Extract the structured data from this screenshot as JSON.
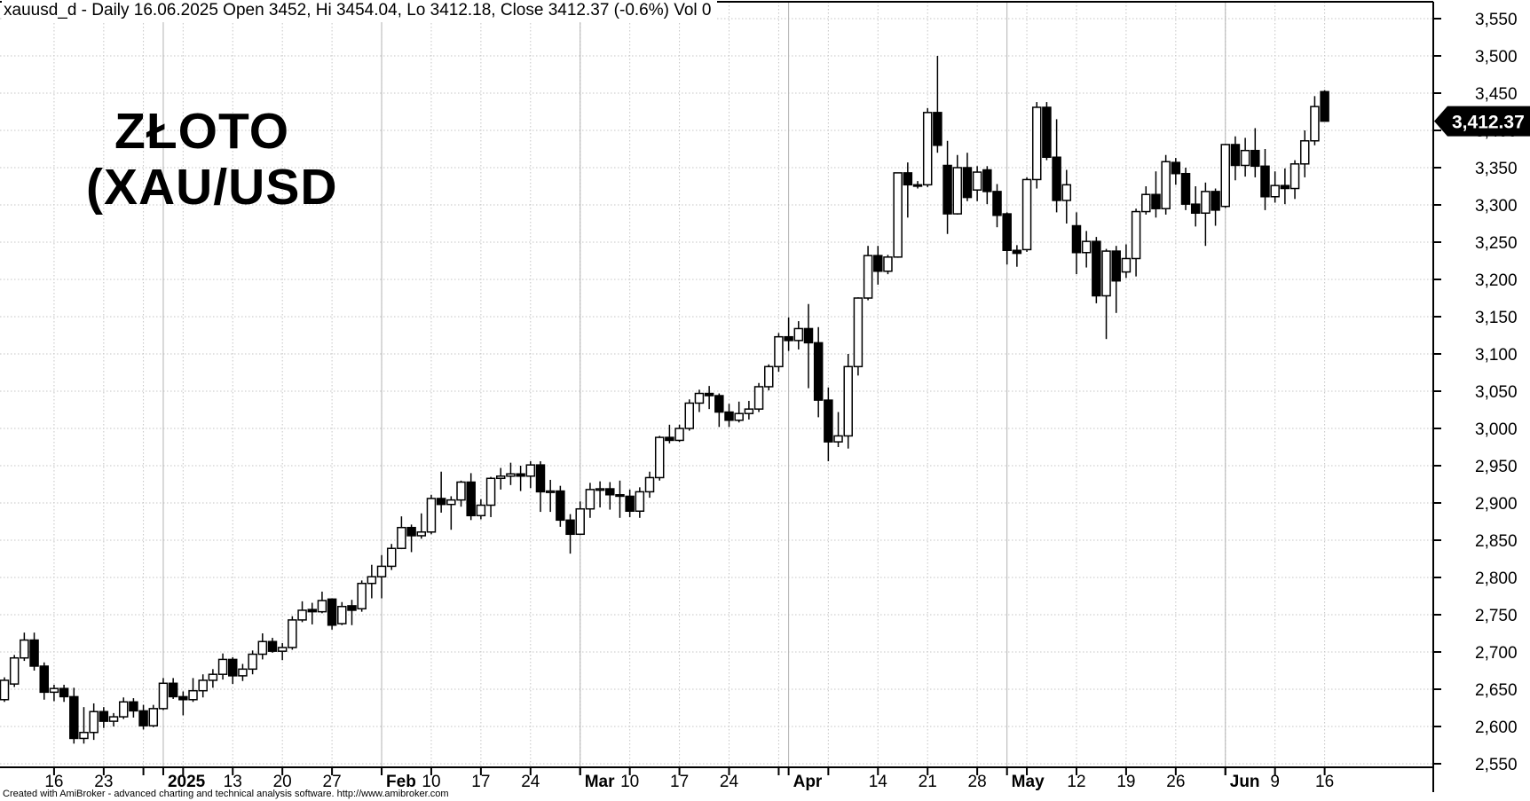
{
  "window": {
    "title": "xauusd_d - Daily 16.06.2025 Open 3452, Hi 3454.04, Lo 3412.18, Close 3412.37 (-0.6%) Vol 0"
  },
  "watermark": {
    "line1": "ZŁOTO",
    "line2": "(XAU/USD"
  },
  "price_tag": {
    "label": "3,412.37",
    "value": 3412.37
  },
  "footer": {
    "credit": "Created with AmiBroker - advanced charting and technical analysis software. http://www.amibroker.com"
  },
  "colors": {
    "background": "#ffffff",
    "candle_up_fill": "#ffffff",
    "candle_down_fill": "#000000",
    "outline": "#000000",
    "grid_dotted": "#c4c4c4",
    "grid_month": "#b2b2b2",
    "tag_bg": "#000000",
    "tag_fg": "#ffffff"
  },
  "y_axis": {
    "min": 2550,
    "max": 3550,
    "step": 50,
    "labels": [
      "2,550",
      "2,600",
      "2,650",
      "2,700",
      "2,750",
      "2,800",
      "2,850",
      "2,900",
      "2,950",
      "3,000",
      "3,050",
      "3,100",
      "3,150",
      "3,200",
      "3,250",
      "3,300",
      "3,350",
      "3,400",
      "3,450",
      "3,500",
      "3,550"
    ]
  },
  "x_axis": {
    "week_start_indices": [
      5,
      10,
      14,
      18,
      23,
      28,
      33,
      38,
      43,
      48,
      53,
      58,
      63,
      68,
      73,
      78,
      83,
      88,
      93,
      98,
      103,
      108,
      113,
      118,
      123,
      128,
      133
    ],
    "month_start_indices": [
      16,
      38,
      58,
      79,
      101,
      123
    ],
    "tick_labels": [
      {
        "i": 5,
        "t": "16",
        "bold": false
      },
      {
        "i": 10,
        "t": "23",
        "bold": false
      },
      {
        "i": 16,
        "t": "2025",
        "bold": true
      },
      {
        "i": 23,
        "t": "13",
        "bold": false
      },
      {
        "i": 28,
        "t": "20",
        "bold": false
      },
      {
        "i": 33,
        "t": "27",
        "bold": false
      },
      {
        "i": 38,
        "t": "Feb",
        "bold": true
      },
      {
        "i": 43,
        "t": "10",
        "bold": false
      },
      {
        "i": 48,
        "t": "17",
        "bold": false
      },
      {
        "i": 53,
        "t": "24",
        "bold": false
      },
      {
        "i": 58,
        "t": "Mar",
        "bold": true
      },
      {
        "i": 63,
        "t": "10",
        "bold": false
      },
      {
        "i": 68,
        "t": "17",
        "bold": false
      },
      {
        "i": 73,
        "t": "24",
        "bold": false
      },
      {
        "i": 79,
        "t": "Apr",
        "bold": true
      },
      {
        "i": 88,
        "t": "14",
        "bold": false
      },
      {
        "i": 93,
        "t": "21",
        "bold": false
      },
      {
        "i": 98,
        "t": "28",
        "bold": false
      },
      {
        "i": 101,
        "t": "May",
        "bold": true
      },
      {
        "i": 108,
        "t": "12",
        "bold": false
      },
      {
        "i": 113,
        "t": "19",
        "bold": false
      },
      {
        "i": 118,
        "t": "26",
        "bold": false
      },
      {
        "i": 123,
        "t": "Jun",
        "bold": true
      },
      {
        "i": 128,
        "t": "9",
        "bold": false
      },
      {
        "i": 133,
        "t": "16",
        "bold": false
      }
    ]
  },
  "chart_data": {
    "type": "candlestick",
    "symbol": "xauusd_d",
    "timeframe": "Daily",
    "title": "ZŁOTO (XAU/USD)",
    "last_bar": {
      "date": "16.06.2025",
      "open": 3452,
      "high": 3454.04,
      "low": 3412.18,
      "close": 3412.37,
      "change_pct": -0.6,
      "volume": 0
    },
    "columns": [
      "date",
      "open",
      "high",
      "low",
      "close"
    ],
    "candles": [
      [
        "2024-12-09",
        2636,
        2666,
        2633,
        2662
      ],
      [
        "2024-12-10",
        2657,
        2696,
        2653,
        2692
      ],
      [
        "2024-12-11",
        2692,
        2726,
        2688,
        2716
      ],
      [
        "2024-12-12",
        2716,
        2726,
        2675,
        2681
      ],
      [
        "2024-12-13",
        2681,
        2686,
        2636,
        2646
      ],
      [
        "2024-12-16",
        2646,
        2656,
        2634,
        2651
      ],
      [
        "2024-12-17",
        2651,
        2656,
        2633,
        2640
      ],
      [
        "2024-12-18",
        2640,
        2652,
        2577,
        2584
      ],
      [
        "2024-12-19",
        2584,
        2626,
        2577,
        2592
      ],
      [
        "2024-12-20",
        2592,
        2631,
        2582,
        2620
      ],
      [
        "2024-12-23",
        2620,
        2626,
        2598,
        2607
      ],
      [
        "2024-12-24",
        2607,
        2618,
        2600,
        2613
      ],
      [
        "2024-12-26",
        2613,
        2639,
        2610,
        2633
      ],
      [
        "2024-12-27",
        2633,
        2638,
        2612,
        2621
      ],
      [
        "2024-12-30",
        2621,
        2629,
        2596,
        2601
      ],
      [
        "2024-12-31",
        2601,
        2629,
        2599,
        2624
      ],
      [
        "2025-01-02",
        2624,
        2665,
        2622,
        2658
      ],
      [
        "2025-01-03",
        2658,
        2665,
        2637,
        2640
      ],
      [
        "2025-01-06",
        2640,
        2647,
        2615,
        2636
      ],
      [
        "2025-01-07",
        2636,
        2665,
        2633,
        2648
      ],
      [
        "2025-01-08",
        2648,
        2670,
        2639,
        2662
      ],
      [
        "2025-01-09",
        2662,
        2677,
        2652,
        2670
      ],
      [
        "2025-01-10",
        2670,
        2698,
        2663,
        2690
      ],
      [
        "2025-01-13",
        2690,
        2693,
        2657,
        2668
      ],
      [
        "2025-01-14",
        2668,
        2684,
        2661,
        2677
      ],
      [
        "2025-01-15",
        2677,
        2702,
        2670,
        2697
      ],
      [
        "2025-01-16",
        2697,
        2725,
        2690,
        2714
      ],
      [
        "2025-01-17",
        2714,
        2719,
        2699,
        2701
      ],
      [
        "2025-01-20",
        2701,
        2712,
        2689,
        2706
      ],
      [
        "2025-01-21",
        2706,
        2748,
        2703,
        2743
      ],
      [
        "2025-01-22",
        2743,
        2768,
        2740,
        2756
      ],
      [
        "2025-01-23",
        2757,
        2766,
        2737,
        2754
      ],
      [
        "2025-01-24",
        2754,
        2781,
        2752,
        2769
      ],
      [
        "2025-01-27",
        2771,
        2772,
        2730,
        2736
      ],
      [
        "2025-01-28",
        2738,
        2767,
        2736,
        2761
      ],
      [
        "2025-01-29",
        2762,
        2770,
        2736,
        2756
      ],
      [
        "2025-01-30",
        2758,
        2796,
        2754,
        2792
      ],
      [
        "2025-01-31",
        2792,
        2817,
        2772,
        2801
      ],
      [
        "2025-02-03",
        2801,
        2830,
        2772,
        2815
      ],
      [
        "2025-02-04",
        2815,
        2845,
        2810,
        2839
      ],
      [
        "2025-02-05",
        2839,
        2882,
        2838,
        2867
      ],
      [
        "2025-02-06",
        2867,
        2871,
        2834,
        2856
      ],
      [
        "2025-02-07",
        2856,
        2886,
        2852,
        2861
      ],
      [
        "2025-02-10",
        2861,
        2911,
        2858,
        2906
      ],
      [
        "2025-02-11",
        2906,
        2942,
        2887,
        2898
      ],
      [
        "2025-02-12",
        2898,
        2909,
        2864,
        2904
      ],
      [
        "2025-02-13",
        2904,
        2930,
        2895,
        2928
      ],
      [
        "2025-02-14",
        2928,
        2940,
        2877,
        2883
      ],
      [
        "2025-02-17",
        2883,
        2905,
        2878,
        2897
      ],
      [
        "2025-02-18",
        2897,
        2935,
        2881,
        2933
      ],
      [
        "2025-02-19",
        2933,
        2947,
        2918,
        2936
      ],
      [
        "2025-02-20",
        2936,
        2954,
        2924,
        2939
      ],
      [
        "2025-02-21",
        2939,
        2950,
        2916,
        2936
      ],
      [
        "2025-02-24",
        2936,
        2956,
        2920,
        2951
      ],
      [
        "2025-02-25",
        2951,
        2956,
        2888,
        2915
      ],
      [
        "2025-02-26",
        2915,
        2931,
        2888,
        2916
      ],
      [
        "2025-02-27",
        2916,
        2923,
        2868,
        2877
      ],
      [
        "2025-02-28",
        2877,
        2885,
        2832,
        2858
      ],
      [
        "2025-03-03",
        2858,
        2902,
        2857,
        2892
      ],
      [
        "2025-03-04",
        2892,
        2927,
        2880,
        2918
      ],
      [
        "2025-03-05",
        2918,
        2929,
        2894,
        2919
      ],
      [
        "2025-03-06",
        2919,
        2928,
        2891,
        2911
      ],
      [
        "2025-03-07",
        2911,
        2930,
        2880,
        2909
      ],
      [
        "2025-03-10",
        2909,
        2918,
        2881,
        2889
      ],
      [
        "2025-03-11",
        2889,
        2921,
        2880,
        2915
      ],
      [
        "2025-03-12",
        2915,
        2942,
        2907,
        2934
      ],
      [
        "2025-03-13",
        2934,
        2990,
        2930,
        2988
      ],
      [
        "2025-03-14",
        2988,
        3005,
        2980,
        2984
      ],
      [
        "2025-03-17",
        2984,
        3005,
        2982,
        3000
      ],
      [
        "2025-03-18",
        3000,
        3039,
        2997,
        3034
      ],
      [
        "2025-03-19",
        3034,
        3052,
        3022,
        3047
      ],
      [
        "2025-03-20",
        3047,
        3057,
        3026,
        3044
      ],
      [
        "2025-03-21",
        3044,
        3047,
        3002,
        3022
      ],
      [
        "2025-03-24",
        3022,
        3033,
        3002,
        3011
      ],
      [
        "2025-03-25",
        3011,
        3036,
        3008,
        3020
      ],
      [
        "2025-03-26",
        3020,
        3037,
        3012,
        3026
      ],
      [
        "2025-03-27",
        3026,
        3061,
        3022,
        3056
      ],
      [
        "2025-03-28",
        3056,
        3086,
        3051,
        3083
      ],
      [
        "2025-03-31",
        3083,
        3128,
        3076,
        3123
      ],
      [
        "2025-04-01",
        3123,
        3149,
        3104,
        3118
      ],
      [
        "2025-04-02",
        3118,
        3144,
        3106,
        3134
      ],
      [
        "2025-04-03",
        3134,
        3167,
        3054,
        3115
      ],
      [
        "2025-04-04",
        3115,
        3136,
        3015,
        3038
      ],
      [
        "2025-04-07",
        3038,
        3055,
        2956,
        2982
      ],
      [
        "2025-04-08",
        2982,
        3022,
        2975,
        2990
      ],
      [
        "2025-04-09",
        2990,
        3100,
        2973,
        3083
      ],
      [
        "2025-04-10",
        3083,
        3176,
        3071,
        3175
      ],
      [
        "2025-04-11",
        3175,
        3245,
        3172,
        3232
      ],
      [
        "2025-04-14",
        3232,
        3245,
        3193,
        3211
      ],
      [
        "2025-04-15",
        3211,
        3233,
        3207,
        3230
      ],
      [
        "2025-04-16",
        3230,
        3343,
        3229,
        3343
      ],
      [
        "2025-04-17",
        3343,
        3357,
        3283,
        3327
      ],
      [
        "2025-04-18",
        3327,
        3332,
        3322,
        3326
      ],
      [
        "2025-04-21",
        3327,
        3430,
        3324,
        3424
      ],
      [
        "2025-04-22",
        3424,
        3500,
        3370,
        3380
      ],
      [
        "2025-04-23",
        3353,
        3386,
        3261,
        3288
      ],
      [
        "2025-04-24",
        3288,
        3367,
        3287,
        3350
      ],
      [
        "2025-04-25",
        3350,
        3370,
        3305,
        3310
      ],
      [
        "2025-04-28",
        3320,
        3352,
        3305,
        3344
      ],
      [
        "2025-04-29",
        3347,
        3352,
        3301,
        3318
      ],
      [
        "2025-04-30",
        3318,
        3328,
        3270,
        3286
      ],
      [
        "2025-05-01",
        3288,
        3290,
        3220,
        3239
      ],
      [
        "2025-05-02",
        3239,
        3246,
        3217,
        3235
      ],
      [
        "2025-05-05",
        3240,
        3337,
        3237,
        3334
      ],
      [
        "2025-05-06",
        3334,
        3438,
        3322,
        3431
      ],
      [
        "2025-05-07",
        3431,
        3438,
        3360,
        3364
      ],
      [
        "2025-05-08",
        3364,
        3415,
        3290,
        3306
      ],
      [
        "2025-05-09",
        3306,
        3347,
        3275,
        3327
      ],
      [
        "2025-05-12",
        3272,
        3290,
        3207,
        3236
      ],
      [
        "2025-05-13",
        3236,
        3265,
        3216,
        3251
      ],
      [
        "2025-05-14",
        3251,
        3257,
        3168,
        3178
      ],
      [
        "2025-05-15",
        3178,
        3241,
        3120,
        3238
      ],
      [
        "2025-05-16",
        3238,
        3245,
        3155,
        3198
      ],
      [
        "2025-05-19",
        3210,
        3247,
        3202,
        3228
      ],
      [
        "2025-05-20",
        3228,
        3295,
        3204,
        3291
      ],
      [
        "2025-05-21",
        3291,
        3325,
        3287,
        3314
      ],
      [
        "2025-05-22",
        3314,
        3345,
        3283,
        3295
      ],
      [
        "2025-05-23",
        3295,
        3367,
        3287,
        3358
      ],
      [
        "2025-05-26",
        3357,
        3363,
        3327,
        3342
      ],
      [
        "2025-05-27",
        3342,
        3350,
        3293,
        3301
      ],
      [
        "2025-05-28",
        3301,
        3325,
        3271,
        3289
      ],
      [
        "2025-05-29",
        3289,
        3330,
        3245,
        3318
      ],
      [
        "2025-05-30",
        3318,
        3322,
        3272,
        3293
      ],
      [
        "2025-06-02",
        3298,
        3382,
        3296,
        3381
      ],
      [
        "2025-06-03",
        3381,
        3392,
        3333,
        3353
      ],
      [
        "2025-06-04",
        3353,
        3390,
        3338,
        3373
      ],
      [
        "2025-06-05",
        3373,
        3403,
        3337,
        3352
      ],
      [
        "2025-06-06",
        3352,
        3375,
        3293,
        3311
      ],
      [
        "2025-06-09",
        3311,
        3345,
        3303,
        3326
      ],
      [
        "2025-06-10",
        3326,
        3349,
        3301,
        3322
      ],
      [
        "2025-06-11",
        3322,
        3360,
        3308,
        3355
      ],
      [
        "2025-06-12",
        3355,
        3400,
        3337,
        3386
      ],
      [
        "2025-06-13",
        3386,
        3446,
        3380,
        3432
      ],
      [
        "2025-06-16",
        3452,
        3454.04,
        3412.18,
        3412.37
      ]
    ]
  }
}
